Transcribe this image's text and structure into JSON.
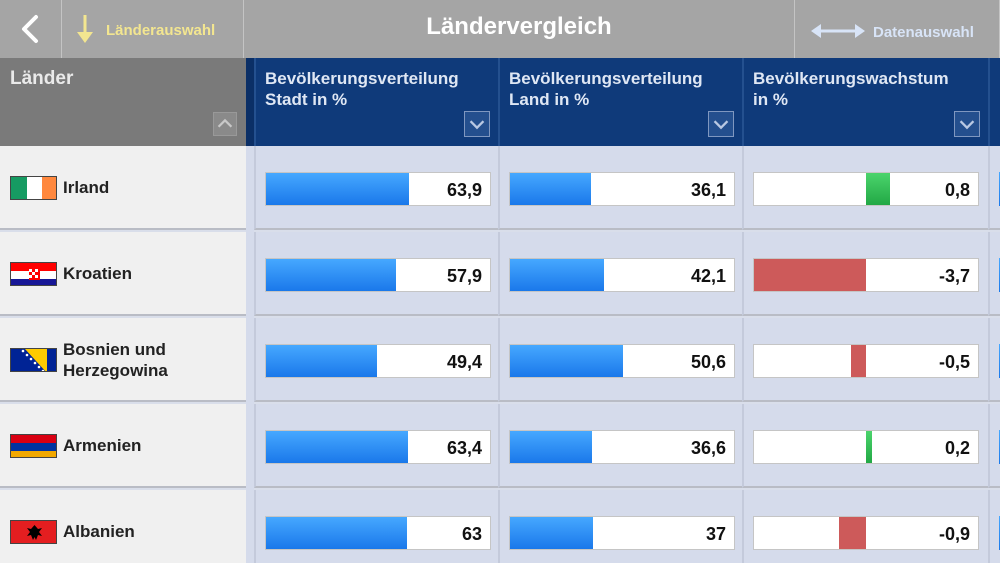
{
  "nav": {
    "title": "Ländervergleich",
    "country_select_label": "Länderauswahl",
    "data_select_label": "Datenauswahl"
  },
  "columns": {
    "countries_header": "Länder",
    "col1": [
      "Bevölkerungsverteilung",
      "Stadt in %"
    ],
    "col2": [
      "Bevölkerungsverteilung",
      "Land in %"
    ],
    "col3": [
      "Bevölkerungswachstum",
      "in %"
    ]
  },
  "rows": [
    {
      "name": [
        "Irland"
      ],
      "flag": "ireland-flag",
      "stadt": "63,9",
      "land": "36,1",
      "wachstum": "0,8"
    },
    {
      "name": [
        "Kroatien"
      ],
      "flag": "croatia-flag",
      "stadt": "57,9",
      "land": "42,1",
      "wachstum": "-3,7"
    },
    {
      "name": [
        "Bosnien und",
        "Herzegowina"
      ],
      "flag": "bosnia-flag",
      "stadt": "49,4",
      "land": "50,6",
      "wachstum": "-0,5"
    },
    {
      "name": [
        "Armenien"
      ],
      "flag": "armenia-flag",
      "stadt": "63,4",
      "land": "36,6",
      "wachstum": "0,2"
    },
    {
      "name": [
        "Albanien"
      ],
      "flag": "albania-flag",
      "stadt": "63",
      "land": "37",
      "wachstum": "-0,9"
    }
  ],
  "colors": {
    "positive": "#22a845",
    "negative": "#cd5a5a",
    "bar": "#1a78ea",
    "header": "#0f3a7a"
  }
}
